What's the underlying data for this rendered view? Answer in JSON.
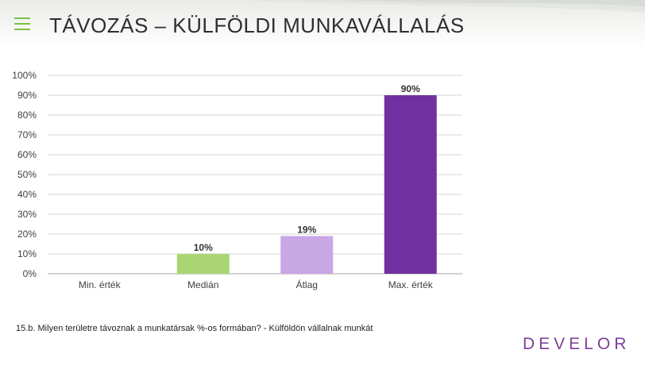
{
  "header": {
    "title": "TÁVOZÁS – KÜLFÖLDI MUNKAVÁLLALÁS"
  },
  "chart_data": {
    "type": "bar",
    "categories": [
      "Min. érték",
      "Medián",
      "Átlag",
      "Max. érték"
    ],
    "values": [
      0,
      10,
      19,
      90
    ],
    "value_labels": [
      "",
      "10%",
      "19%",
      "90%"
    ],
    "bar_colors": [
      "#d9d9d9",
      "#a9d672",
      "#c9a6e4",
      "#7030a0"
    ],
    "ylim": [
      0,
      100
    ],
    "yticks": [
      0,
      10,
      20,
      30,
      40,
      50,
      60,
      70,
      80,
      90,
      100
    ],
    "ytick_labels": [
      "0%",
      "10%",
      "20%",
      "30%",
      "40%",
      "50%",
      "60%",
      "70%",
      "80%",
      "90%",
      "100%"
    ],
    "grid": true,
    "title": "",
    "xlabel": "",
    "ylabel": ""
  },
  "footnote": "15.b. Milyen területre távoznak a munkatársak %-os formában? - Külföldön vállalnak munkát",
  "logo": {
    "text": "DEVELOR",
    "color": "#7e3f97"
  },
  "colors": {
    "accent_green": "#7cc242",
    "grid": "#d4d4d4"
  }
}
